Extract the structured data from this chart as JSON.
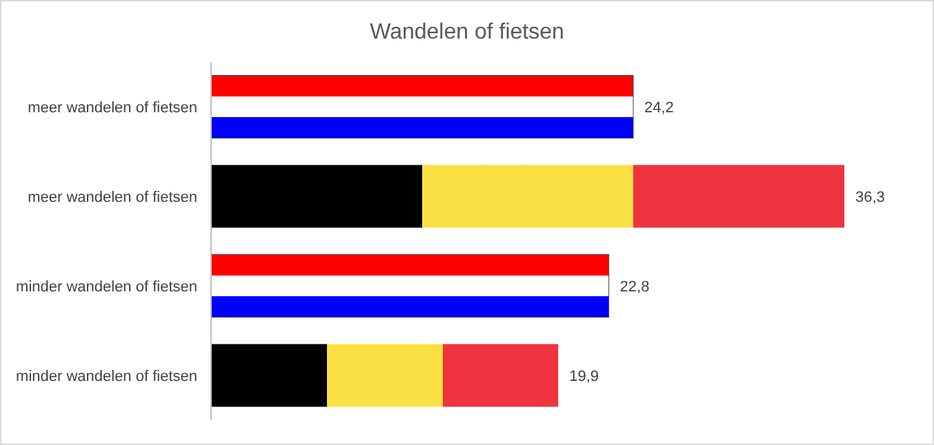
{
  "chart_data": {
    "type": "bar",
    "orientation": "horizontal",
    "title": "Wandelen of fietsen",
    "categories": [
      "meer  wandelen of fietsen",
      "meer  wandelen of fietsen",
      "minder  wandelen of fietsen",
      "minder  wandelen of fietsen"
    ],
    "values": [
      24.2,
      36.3,
      22.8,
      19.9
    ],
    "value_labels": [
      "24,2",
      "36,3",
      "22,8",
      "19,9"
    ]
  }
}
